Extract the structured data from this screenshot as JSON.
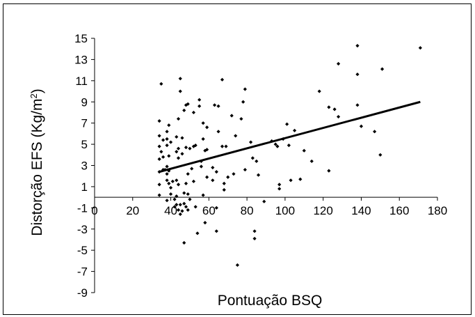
{
  "chart_data": {
    "type": "scatter",
    "title": "",
    "xlabel": "Pontuação BSQ",
    "ylabel": "Distorção EFS (Kg/m",
    "ylabel_superscript": "2",
    "ylabel_close": ")",
    "xlim": [
      0,
      180
    ],
    "ylim": [
      -9,
      15
    ],
    "x_ticks": [
      0,
      20,
      40,
      60,
      80,
      100,
      120,
      140,
      160,
      180
    ],
    "y_ticks": [
      -9,
      -7,
      -5,
      -3,
      -1,
      1,
      3,
      5,
      7,
      9,
      11,
      13,
      15
    ],
    "grid": false,
    "legend": "none",
    "marker_color": "#000000",
    "trendline": {
      "x": [
        34,
        171
      ],
      "y": [
        2.4,
        9.0
      ],
      "color": "#000000"
    },
    "points": [
      [
        34,
        7.2
      ],
      [
        34,
        5.8
      ],
      [
        34,
        4.8
      ],
      [
        34,
        3.6
      ],
      [
        34,
        2.4
      ],
      [
        34,
        1.2
      ],
      [
        34,
        0.2
      ],
      [
        35,
        10.7
      ],
      [
        35,
        4.3
      ],
      [
        36,
        5.4
      ],
      [
        36,
        3.8
      ],
      [
        36,
        2.6
      ],
      [
        37,
        2.6
      ],
      [
        38,
        6.2
      ],
      [
        38,
        5.5
      ],
      [
        38,
        4.9
      ],
      [
        38,
        2.9
      ],
      [
        38,
        2.2
      ],
      [
        38,
        1.6
      ],
      [
        38,
        -0.3
      ],
      [
        39,
        6.8
      ],
      [
        39,
        3.9
      ],
      [
        39,
        2.5
      ],
      [
        39,
        1.3
      ],
      [
        40,
        5.2
      ],
      [
        40,
        0.9
      ],
      [
        40,
        0.3
      ],
      [
        41,
        1.5
      ],
      [
        42,
        -0.2
      ],
      [
        42,
        -0.9
      ],
      [
        43,
        5.7
      ],
      [
        43,
        4.3
      ],
      [
        43,
        1.6
      ],
      [
        43,
        0.1
      ],
      [
        43,
        -0.7
      ],
      [
        44,
        7.4
      ],
      [
        44,
        4.6
      ],
      [
        44,
        3.7
      ],
      [
        44,
        1.2
      ],
      [
        44,
        -1.2
      ],
      [
        45,
        10.0
      ],
      [
        45,
        11.2
      ],
      [
        45,
        -0.7
      ],
      [
        45,
        -1.6
      ],
      [
        46,
        4.1
      ],
      [
        46,
        5.6
      ],
      [
        46,
        -1.3
      ],
      [
        47,
        8.2
      ],
      [
        47,
        0.4
      ],
      [
        47,
        -0.6
      ],
      [
        47,
        -4.3
      ],
      [
        48,
        8.7
      ],
      [
        48,
        4.7
      ],
      [
        48,
        1.3
      ],
      [
        48,
        -0.9
      ],
      [
        49,
        8.8
      ],
      [
        49,
        2.2
      ],
      [
        49,
        0.3
      ],
      [
        49,
        -1.2
      ],
      [
        50,
        4.6
      ],
      [
        50,
        -0.2
      ],
      [
        51,
        2.7
      ],
      [
        52,
        8.0
      ],
      [
        52,
        4.8
      ],
      [
        52,
        1.5
      ],
      [
        53,
        4.9
      ],
      [
        53,
        -0.9
      ],
      [
        54,
        -3.4
      ],
      [
        55,
        9.2
      ],
      [
        55,
        8.6
      ],
      [
        56,
        3.4
      ],
      [
        56,
        2.9
      ],
      [
        57,
        7.0
      ],
      [
        57,
        5.5
      ],
      [
        57,
        0.2
      ],
      [
        58,
        4.4
      ],
      [
        58,
        -2.4
      ],
      [
        59,
        6.6
      ],
      [
        59,
        4.5
      ],
      [
        59,
        1.9
      ],
      [
        62,
        2.8
      ],
      [
        62,
        1.6
      ],
      [
        63,
        8.7
      ],
      [
        64,
        2.4
      ],
      [
        64,
        -1.0
      ],
      [
        64,
        -3.2
      ],
      [
        65,
        8.6
      ],
      [
        65,
        6.2
      ],
      [
        67,
        11.1
      ],
      [
        67,
        4.8
      ],
      [
        68,
        1.3
      ],
      [
        68,
        0.7
      ],
      [
        69,
        4.8
      ],
      [
        70,
        1.9
      ],
      [
        72,
        7.7
      ],
      [
        73,
        2.2
      ],
      [
        74,
        5.8
      ],
      [
        75,
        -6.4
      ],
      [
        77,
        7.4
      ],
      [
        78,
        9.0
      ],
      [
        79,
        10.2
      ],
      [
        79,
        2.6
      ],
      [
        82,
        5.2
      ],
      [
        83,
        3.7
      ],
      [
        84,
        -3.2
      ],
      [
        84,
        -3.9
      ],
      [
        85,
        3.4
      ],
      [
        86,
        2.1
      ],
      [
        89,
        -0.4
      ],
      [
        93,
        5.3
      ],
      [
        95,
        5.0
      ],
      [
        96,
        4.8
      ],
      [
        97,
        1.2
      ],
      [
        97,
        0.8
      ],
      [
        99,
        5.5
      ],
      [
        101,
        6.9
      ],
      [
        102,
        4.9
      ],
      [
        103,
        1.6
      ],
      [
        105,
        6.3
      ],
      [
        108,
        1.7
      ],
      [
        110,
        4.4
      ],
      [
        114,
        3.4
      ],
      [
        118,
        10.0
      ],
      [
        123,
        8.5
      ],
      [
        123,
        2.5
      ],
      [
        126,
        8.3
      ],
      [
        128,
        7.6
      ],
      [
        128,
        12.6
      ],
      [
        138,
        14.3
      ],
      [
        138,
        11.6
      ],
      [
        138,
        8.7
      ],
      [
        140,
        6.7
      ],
      [
        147,
        6.2
      ],
      [
        150,
        4.0
      ],
      [
        151,
        12.1
      ],
      [
        171,
        14.1
      ]
    ]
  }
}
